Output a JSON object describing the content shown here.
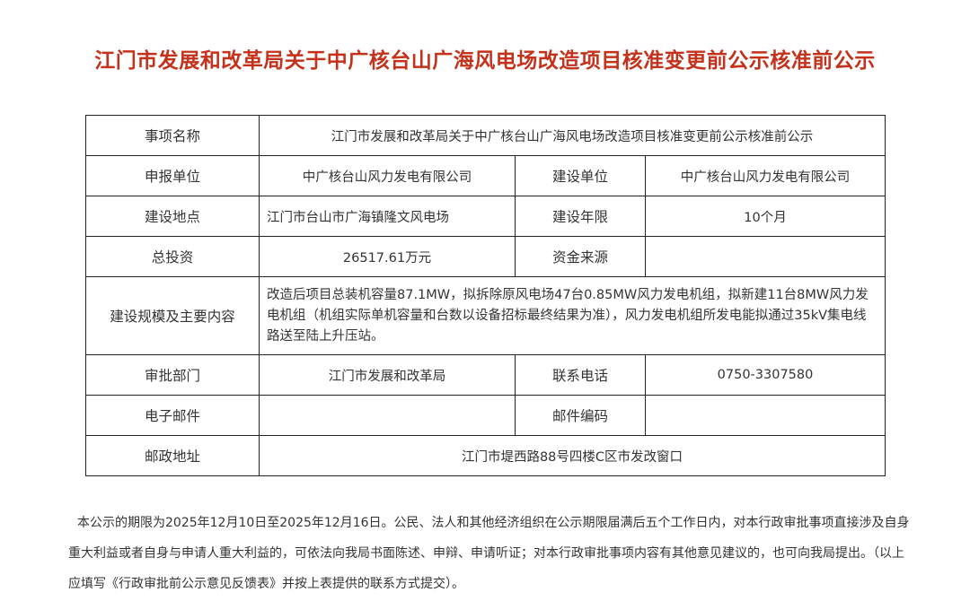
{
  "title": "江门市发展和改革局关于中广核台山广海风电场改造项目核准变更前公示核准前公示",
  "table": {
    "item_name_label": "事项名称",
    "item_name": "江门市发展和改革局关于中广核台山广海风电场改造项目核准变更前公示核准前公示",
    "applicant_label": "申报单位",
    "applicant": "中广核台山风力发电有限公司",
    "builder_label": "建设单位",
    "builder": "中广核台山风力发电有限公司",
    "location_label": "建设地点",
    "location": "江门市台山市广海镇隆文风电场",
    "duration_label": "建设年限",
    "duration": "10个月",
    "investment_label": "总投资",
    "investment": "26517.61万元",
    "funding_label": "资金来源",
    "funding": "",
    "scope_label": "建设规模及主要内容",
    "scope": "改造后项目总装机容量87.1MW，拟拆除原风电场47台0.85MW风力发电机组，拟新建11台8MW风力发电机组（机组实际单机容量和台数以设备招标最终结果为准），风力发电机组所发电能拟通过35kV集电线路送至陆上升压站。",
    "dept_label": "审批部门",
    "dept": "江门市发展和改革局",
    "phone_label": "联系电话",
    "phone": "0750-3307580",
    "email_label": "电子邮件",
    "email": "",
    "postcode_label": "邮件编码",
    "postcode": "",
    "address_label": "邮政地址",
    "address": "江门市堤西路88号四楼C区市发改窗口"
  },
  "notice": "本公示的期限为2025年12月10日至2025年12月16日。公民、法人和其他经济组织在公示期限届满后五个工作日内，对本行政审批事项直接涉及自身重大利益或者自身与申请人重大利益的，可依法向我局书面陈述、申辩、申请听证；对本行政审批事项内容有其他意见建议的，也可向我局提出。（以上应填写《行政审批前公示意见反馈表》并按上表提供的联系方式提交）。",
  "colors": {
    "title": "#c4321c",
    "border": "#222222"
  }
}
